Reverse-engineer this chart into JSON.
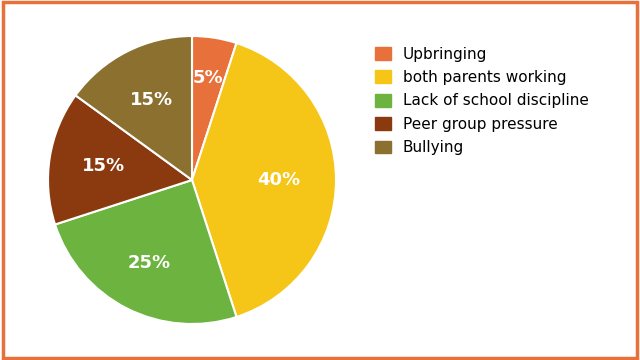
{
  "labels": [
    "Upbringing",
    "both parents working",
    "Lack of school discipline",
    "Peer group pressure",
    "Bullying"
  ],
  "values": [
    5,
    40,
    25,
    15,
    15
  ],
  "colors": [
    "#E8703A",
    "#F5C518",
    "#6DB33F",
    "#8B3A0F",
    "#8B7030"
  ],
  "pct_labels": [
    "5%",
    "40%",
    "25%",
    "15%",
    "15%"
  ],
  "startangle": 90,
  "background_color": "#FFFFFF",
  "border_color": "#E8703A",
  "text_color": "#FFFFFF",
  "legend_fontsize": 11,
  "pct_fontsize": 13
}
